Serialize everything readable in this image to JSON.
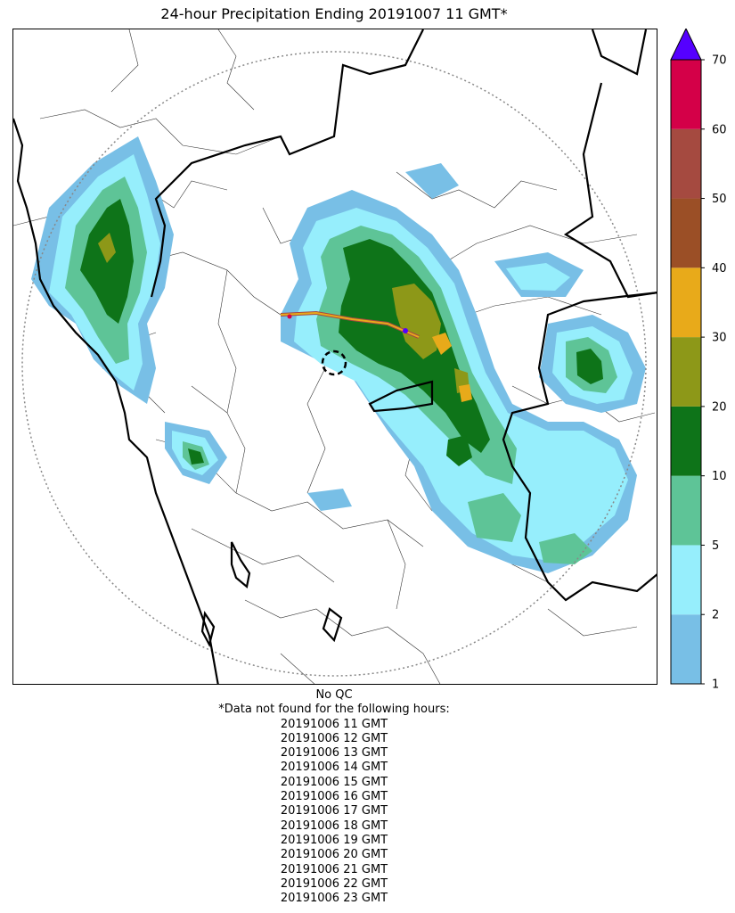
{
  "title": "24-hour Precipitation Ending 20191007 11 GMT*",
  "colorbar": {
    "ticks": [
      "1",
      "2",
      "5",
      "10",
      "20",
      "30",
      "40",
      "50",
      "60",
      "70"
    ],
    "colors": [
      "#78bfe6",
      "#96eefc",
      "#5ec497",
      "#0e7419",
      "#8d9818",
      "#e8aa1a",
      "#9b4f26",
      "#a54a40",
      "#d40048"
    ],
    "extend_color": "#5500ff"
  },
  "notes": {
    "qc": "No QC",
    "missing_header": "*Data not found for the following hours:",
    "missing_hours": [
      "20191006 11 GMT",
      "20191006 12 GMT",
      "20191006 13 GMT",
      "20191006 14 GMT",
      "20191006 15 GMT",
      "20191006 16 GMT",
      "20191006 17 GMT",
      "20191006 18 GMT",
      "20191006 19 GMT",
      "20191006 20 GMT",
      "20191006 21 GMT",
      "20191006 22 GMT",
      "20191006 23 GMT"
    ]
  }
}
